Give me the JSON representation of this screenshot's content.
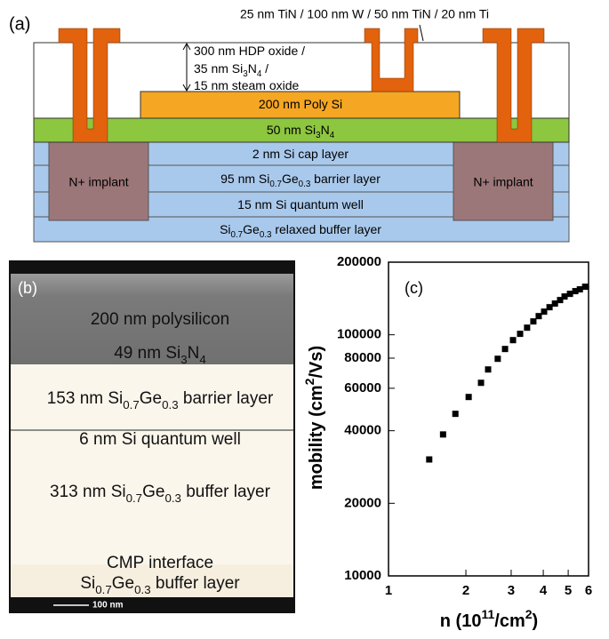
{
  "panel_a": {
    "label": "(a)",
    "metal_stack": "25 nm TiN / 100 nm W / 50 nm TiN / 20 nm Ti",
    "oxide_stack": [
      [
        "300 nm HDP oxide /"
      ],
      [
        "35 nm Si",
        "3",
        "N",
        "4",
        " /"
      ],
      [
        "15 nm steam oxide"
      ]
    ],
    "layers": {
      "poly": [
        "200 nm Poly Si"
      ],
      "nitride": [
        "50 nm Si",
        "3",
        "N",
        "4"
      ],
      "cap": [
        "2 nm Si cap layer"
      ],
      "barrier": [
        "95 nm Si",
        "0.7",
        "Ge",
        "0.3",
        " barrier layer"
      ],
      "well": [
        "15 nm Si quantum well"
      ],
      "buffer": [
        "Si",
        "0.7",
        "Ge",
        "0.3",
        " relaxed buffer layer"
      ]
    },
    "implants": [
      "N+ implant",
      "N+ implant"
    ]
  },
  "panel_b": {
    "label": "(b)",
    "layers": [
      [
        "200 nm polysilicon"
      ],
      [
        "49 nm Si",
        "3",
        "N",
        "4"
      ],
      [
        "153 nm Si",
        "0.7",
        "Ge",
        "0.3",
        " barrier layer"
      ],
      [
        "6 nm Si quantum well"
      ],
      [
        "313 nm Si",
        "0.7",
        "Ge",
        "0.3",
        " buffer layer"
      ],
      [
        "CMP interface"
      ],
      [
        "Si",
        "0.7",
        "Ge",
        "0.3",
        " buffer layer"
      ]
    ],
    "scale_bar": "100 nm"
  },
  "chart_data": {
    "type": "scatter",
    "panel_label": "(c)",
    "x_label": [
      "n (10",
      "11",
      "/cm",
      "2",
      ")"
    ],
    "y_label": [
      "mobility (cm",
      "2",
      "/Vs)"
    ],
    "x": [
      1.44,
      1.63,
      1.82,
      2.05,
      2.29,
      2.44,
      2.66,
      2.84,
      3.05,
      3.25,
      3.46,
      3.66,
      3.84,
      4.03,
      4.23,
      4.44,
      4.65,
      4.84,
      5.08,
      5.33,
      5.55,
      5.82
    ],
    "values": [
      30400,
      38600,
      47000,
      55200,
      63200,
      71800,
      79500,
      87300,
      95000,
      100900,
      107000,
      113600,
      119500,
      124700,
      130100,
      134700,
      139300,
      144100,
      147800,
      151700,
      154300,
      158200
    ],
    "color": "#000000",
    "xlim": [
      1,
      6
    ],
    "ylim": [
      10000,
      200000
    ],
    "xticks": [
      1,
      2,
      3,
      4,
      5,
      6
    ],
    "yticks": [
      10000,
      20000,
      40000,
      60000,
      80000,
      100000,
      200000
    ],
    "xscale": "log",
    "yscale": "log",
    "grid": false
  }
}
